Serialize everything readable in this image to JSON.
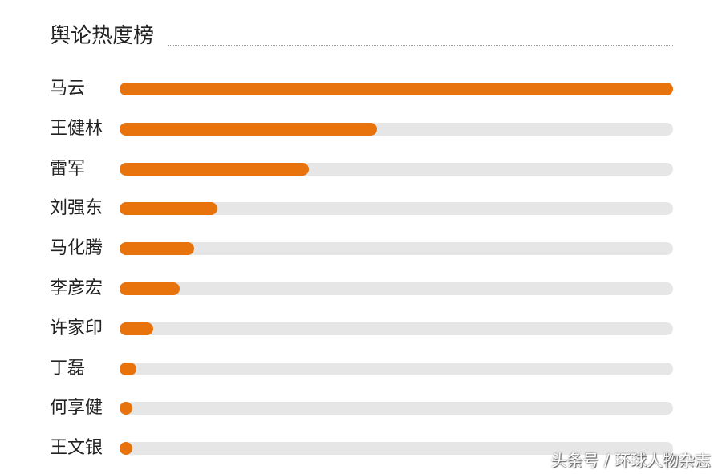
{
  "chart_data": {
    "type": "bar",
    "orientation": "horizontal",
    "title": "舆论热度榜",
    "categories": [
      "马云",
      "王健林",
      "雷军",
      "刘强东",
      "马化腾",
      "李彦宏",
      "许家印",
      "丁磊",
      "何享健",
      "王文银"
    ],
    "values": [
      100,
      46.5,
      34.2,
      17.7,
      13.5,
      10.9,
      6.1,
      3.0,
      2.0,
      2.0
    ],
    "xlim": [
      0,
      100
    ],
    "grid": false,
    "bar_color": "#e8720c",
    "track_color": "#e6e6e6"
  },
  "watermark": "头条号 / 环球人物杂志"
}
